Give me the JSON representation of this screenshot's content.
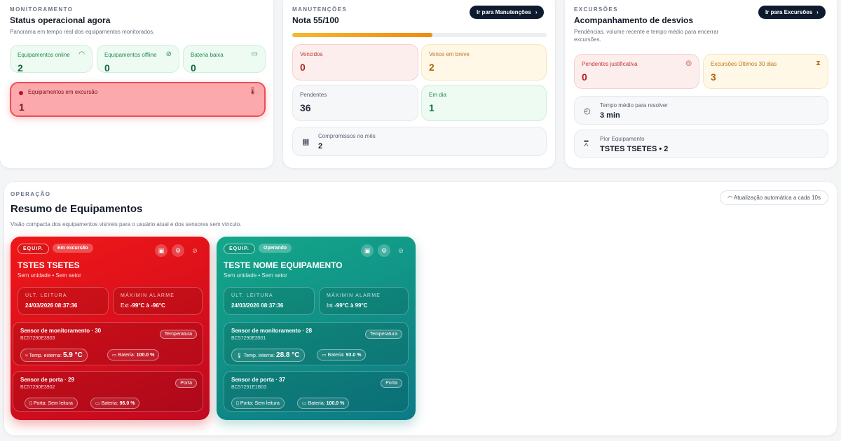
{
  "monitoring": {
    "eyebrow": "MONITORAMENTO",
    "title": "Status operacional agora",
    "subtitle": "Panorama em tempo real dos equipamentos monitorados.",
    "online": {
      "label": "Equipamentos online",
      "value": "2"
    },
    "offline": {
      "label": "Equipamentos offline",
      "value": "0"
    },
    "battery": {
      "label": "Bateria baixa",
      "value": "0"
    },
    "excursion": {
      "label": "Equipamentos em excursão",
      "value": "1"
    }
  },
  "maintenance": {
    "eyebrow": "MANUTENÇÕES",
    "title": "Nota 55/100",
    "score": 55,
    "button": "Ir para Manutenções",
    "overdue": {
      "label": "Vencidos",
      "value": "0"
    },
    "due_soon": {
      "label": "Vence em breve",
      "value": "2"
    },
    "pending": {
      "label": "Pendentes",
      "value": "36"
    },
    "up_to_date": {
      "label": "Em dia",
      "value": "1"
    },
    "month": {
      "label": "Compromissos no mês",
      "value": "2"
    }
  },
  "excursions": {
    "eyebrow": "EXCURSÕES",
    "title": "Acompanhamento de desvios",
    "subtitle": "Pendências, volume recente e tempo médio para encerrar excursões.",
    "button": "Ir para Excursões",
    "pending_just": {
      "label": "Pendentes justificativa",
      "value": "0"
    },
    "last30": {
      "label": "Excursões Últimos 30 dias",
      "value": "3"
    },
    "avg_time": {
      "label": "Tempo médio para resolver",
      "value": "3 min"
    },
    "worst": {
      "label": "Pior Equipamento",
      "value": "TSTES TSETES • 2"
    }
  },
  "operation": {
    "eyebrow": "OPERAÇÃO",
    "title": "Resumo de Equipamentos",
    "subtitle": "Visão compacta dos equipamentos visíveis para o usuário atual e dos sensores sem vínculo.",
    "auto_refresh": "Atualização automática a cada 10s"
  },
  "equipments": [
    {
      "tag": "EQUIP.",
      "status": "Em excursão",
      "name": "TSTES TSETES",
      "location": "Sem unidade • Sem setor",
      "last_reading_label": "ÚLT. LEITURA",
      "last_reading": "24/03/2026 08:37:36",
      "alarm_label": "MÁX/MIN ALARME",
      "alarm_prefix": "Ext",
      "alarm_range": "-99°C à -96°C",
      "sensors": [
        {
          "name": "Sensor de monitoramento · 30",
          "id": "BC57290E3903",
          "type": "Temperatura",
          "reading_label": "Temp. externa:",
          "reading_value": "5.9 °C",
          "battery_label": "Bateria:",
          "battery_value": "100.0 %"
        },
        {
          "name": "Sensor de porta · 29",
          "id": "BC57290E3902",
          "type": "Porta",
          "reading_label": "Porta:",
          "reading_value": "Sem leitura",
          "battery_label": "Bateria:",
          "battery_value": "96.0 %"
        }
      ]
    },
    {
      "tag": "EQUIP.",
      "status": "Operando",
      "name": "TESTE NOME EQUIPAMENTO",
      "location": "Sem unidade • Sem setor",
      "last_reading_label": "ÚLT. LEITURA",
      "last_reading": "24/03/2026 08:37:36",
      "alarm_label": "MÁX/MIN ALARME",
      "alarm_prefix": "Int",
      "alarm_range": "-99°C à 99°C",
      "sensors": [
        {
          "name": "Sensor de monitoramento · 28",
          "id": "BC57290E3901",
          "type": "Temperatura",
          "reading_label": "Temp. interna:",
          "reading_value": "28.8 °C",
          "battery_label": "Bateria:",
          "battery_value": "93.0 %"
        },
        {
          "name": "Sensor de porta · 37",
          "id": "BC57291E1B03",
          "type": "Porta",
          "reading_label": "Porta:",
          "reading_value": "Sem leitura",
          "battery_label": "Bateria:",
          "battery_value": "100.0 %"
        }
      ]
    }
  ],
  "colors": {
    "excursion_red": "#e8131f",
    "operating_teal": "#10948a",
    "accent_orange": "#f39a1a",
    "dark_button": "#0e1a2e"
  }
}
